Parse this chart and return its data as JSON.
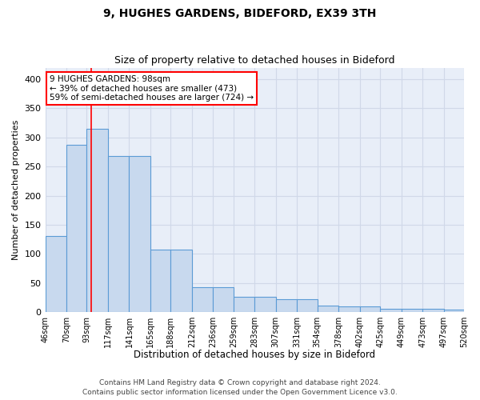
{
  "title1": "9, HUGHES GARDENS, BIDEFORD, EX39 3TH",
  "title2": "Size of property relative to detached houses in Bideford",
  "xlabel": "Distribution of detached houses by size in Bideford",
  "ylabel": "Number of detached properties",
  "footnote1": "Contains HM Land Registry data © Crown copyright and database right 2024.",
  "footnote2": "Contains public sector information licensed under the Open Government Licence v3.0.",
  "bar_labels": [
    "46sqm",
    "70sqm",
    "93sqm",
    "117sqm",
    "141sqm",
    "165sqm",
    "188sqm",
    "212sqm",
    "236sqm",
    "259sqm",
    "283sqm",
    "307sqm",
    "331sqm",
    "354sqm",
    "378sqm",
    "402sqm",
    "425sqm",
    "449sqm",
    "473sqm",
    "497sqm",
    "520sqm"
  ],
  "heights": [
    130,
    288,
    315,
    268,
    268,
    107,
    107,
    42,
    42,
    26,
    26,
    22,
    22,
    11,
    9,
    9,
    6,
    5,
    5,
    4
  ],
  "bar_color": "#c8d9ee",
  "bar_edge_color": "#5b9bd5",
  "grid_color": "#d0d8e8",
  "background_color": "#e8eef8",
  "annotation_line1": "9 HUGHES GARDENS: 98sqm",
  "annotation_line2": "← 39% of detached houses are smaller (473)",
  "annotation_line3": "59% of semi-detached houses are larger (724) →",
  "annotation_box_color": "white",
  "annotation_box_edge": "red",
  "redline_x": 98,
  "ylim": [
    0,
    420
  ],
  "yticks": [
    0,
    50,
    100,
    150,
    200,
    250,
    300,
    350,
    400
  ],
  "bin_edges": [
    46,
    70,
    93,
    117,
    141,
    165,
    188,
    212,
    236,
    259,
    283,
    307,
    331,
    354,
    378,
    402,
    425,
    449,
    473,
    497,
    520
  ]
}
